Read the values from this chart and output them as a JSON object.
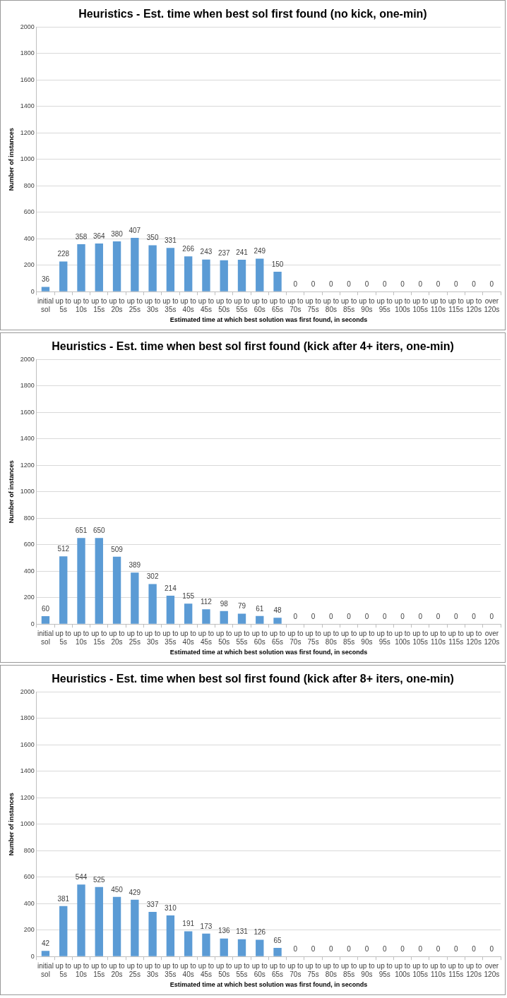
{
  "chart_data": [
    {
      "type": "bar",
      "title": "Heuristics - Est. time when best sol first found (no kick, one-min)",
      "xlabel": "Estimated time at which best solution was first found, in seconds",
      "ylabel": "Number of instances",
      "categories": [
        "initial sol",
        "up to 5s",
        "up to 10s",
        "up to 15s",
        "up to 20s",
        "up to 25s",
        "up to 30s",
        "up to 35s",
        "up to 40s",
        "up to 45s",
        "up to 50s",
        "up to 55s",
        "up to 60s",
        "up to 65s",
        "up to 70s",
        "up to 75s",
        "up to 80s",
        "up to 85s",
        "up to 90s",
        "up to 95s",
        "up to 100s",
        "up to 105s",
        "up to 110s",
        "up to 115s",
        "up to 120s",
        "over 120s"
      ],
      "values": [
        36,
        228,
        358,
        364,
        380,
        407,
        350,
        331,
        266,
        243,
        237,
        241,
        249,
        150,
        0,
        0,
        0,
        0,
        0,
        0,
        0,
        0,
        0,
        0,
        0,
        0
      ],
      "color": "#5b9bd5",
      "ylim": [
        0,
        2000
      ],
      "yticks": [
        0,
        200,
        400,
        600,
        800,
        1000,
        1200,
        1400,
        1600,
        1800,
        2000
      ],
      "grid": "y",
      "legend": false,
      "data_labels": true
    },
    {
      "type": "bar",
      "title": "Heuristics - Est. time when best sol first found (kick after 4+ iters, one-min)",
      "xlabel": "Estimated time at which best solution was first found, in seconds",
      "ylabel": "Number of instances",
      "categories": [
        "initial sol",
        "up to 5s",
        "up to 10s",
        "up to 15s",
        "up to 20s",
        "up to 25s",
        "up to 30s",
        "up to 35s",
        "up to 40s",
        "up to 45s",
        "up to 50s",
        "up to 55s",
        "up to 60s",
        "up to 65s",
        "up to 70s",
        "up to 75s",
        "up to 80s",
        "up to 85s",
        "up to 90s",
        "up to 95s",
        "up to 100s",
        "up to 105s",
        "up to 110s",
        "up to 115s",
        "up to 120s",
        "over 120s"
      ],
      "values": [
        60,
        512,
        651,
        650,
        509,
        389,
        302,
        214,
        155,
        112,
        98,
        79,
        61,
        48,
        0,
        0,
        0,
        0,
        0,
        0,
        0,
        0,
        0,
        0,
        0,
        0
      ],
      "color": "#5b9bd5",
      "ylim": [
        0,
        2000
      ],
      "yticks": [
        0,
        200,
        400,
        600,
        800,
        1000,
        1200,
        1400,
        1600,
        1800,
        2000
      ],
      "grid": "y",
      "legend": false,
      "data_labels": true
    },
    {
      "type": "bar",
      "title": "Heuristics - Est. time when best sol first found (kick after 8+ iters, one-min)",
      "xlabel": "Estimated time at which best solution was first found, in seconds",
      "ylabel": "Number of instances",
      "categories": [
        "initial sol",
        "up to 5s",
        "up to 10s",
        "up to 15s",
        "up to 20s",
        "up to 25s",
        "up to 30s",
        "up to 35s",
        "up to 40s",
        "up to 45s",
        "up to 50s",
        "up to 55s",
        "up to 60s",
        "up to 65s",
        "up to 70s",
        "up to 75s",
        "up to 80s",
        "up to 85s",
        "up to 90s",
        "up to 95s",
        "up to 100s",
        "up to 105s",
        "up to 110s",
        "up to 115s",
        "up to 120s",
        "over 120s"
      ],
      "values": [
        42,
        381,
        544,
        525,
        450,
        429,
        337,
        310,
        191,
        173,
        136,
        131,
        126,
        65,
        0,
        0,
        0,
        0,
        0,
        0,
        0,
        0,
        0,
        0,
        0,
        0
      ],
      "color": "#5b9bd5",
      "ylim": [
        0,
        2000
      ],
      "yticks": [
        0,
        200,
        400,
        600,
        800,
        1000,
        1200,
        1400,
        1600,
        1800,
        2000
      ],
      "grid": "y",
      "legend": false,
      "data_labels": true
    }
  ]
}
